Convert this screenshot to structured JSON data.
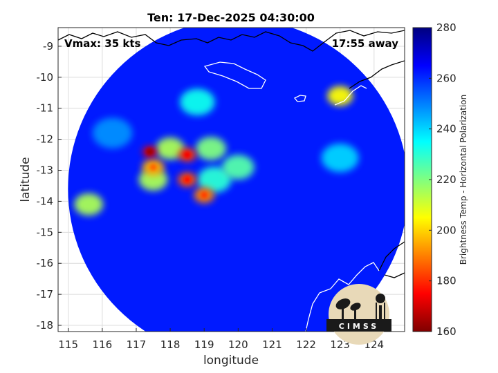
{
  "chart_data": {
    "type": "heatmap",
    "title": "Ten: 17-Dec-2025 04:30:00",
    "xlabel": "longitude",
    "ylabel": "latitude",
    "xlim": [
      114.7,
      124.9
    ],
    "ylim": [
      -18.2,
      -8.4
    ],
    "x_ticks": [
      "115",
      "116",
      "117",
      "118",
      "119",
      "120",
      "121",
      "122",
      "123",
      "124"
    ],
    "y_ticks": [
      "-9",
      "-10",
      "-11",
      "-12",
      "-13",
      "-14",
      "-15",
      "-16",
      "-17",
      "-18"
    ],
    "grid": true,
    "annotations": {
      "vmax": "Vmax: 35 kts",
      "time_away": "17:55 away"
    },
    "colorbar": {
      "label": "Brightness Temp - Horizontal Polarization",
      "range": [
        160,
        280
      ],
      "ticks": [
        "280",
        "260",
        "240",
        "220",
        "200",
        "180",
        "160"
      ],
      "colormap": "jet"
    },
    "swath": {
      "center": [
        120.0,
        -13.6
      ],
      "background_value": 262
    },
    "features": [
      {
        "lon": 117.4,
        "lat": -12.4,
        "value": 172
      },
      {
        "lon": 118.5,
        "lat": -12.5,
        "value": 182
      },
      {
        "lon": 117.5,
        "lat": -12.9,
        "value": 195
      },
      {
        "lon": 118.5,
        "lat": -13.3,
        "value": 185
      },
      {
        "lon": 119.0,
        "lat": -13.8,
        "value": 190
      },
      {
        "lon": 117.5,
        "lat": -13.3,
        "value": 215
      },
      {
        "lon": 118.0,
        "lat": -12.3,
        "value": 215
      },
      {
        "lon": 119.2,
        "lat": -12.3,
        "value": 220
      },
      {
        "lon": 120.0,
        "lat": -12.9,
        "value": 225
      },
      {
        "lon": 119.3,
        "lat": -13.3,
        "value": 230
      },
      {
        "lon": 118.8,
        "lat": -10.8,
        "value": 233
      },
      {
        "lon": 123.0,
        "lat": -10.6,
        "value": 205
      },
      {
        "lon": 123.0,
        "lat": -12.6,
        "value": 240
      },
      {
        "lon": 115.6,
        "lat": -14.1,
        "value": 215
      },
      {
        "lon": 116.3,
        "lat": -11.8,
        "value": 248
      }
    ],
    "logo_text": "CIMSS"
  }
}
